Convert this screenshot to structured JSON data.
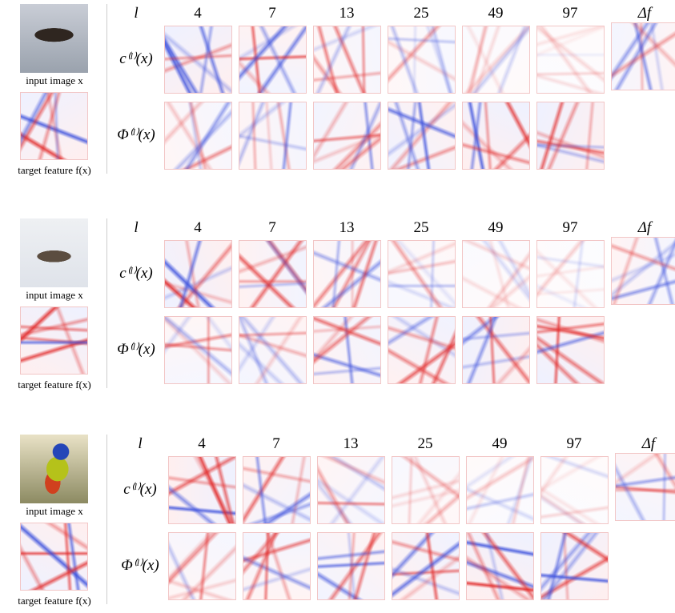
{
  "panels": [
    {
      "input_label": "input image x",
      "target_label": "target feature f(x)",
      "layer_label": "l",
      "columns": [
        4,
        7,
        13,
        25,
        49,
        97
      ],
      "delta_label": "Δf",
      "row_labels": [
        "c⁽ˡ⁾(x)",
        "Φ⁽ˡ⁾(x)"
      ]
    },
    {
      "input_label": "input image x",
      "target_label": "target feature f(x)",
      "layer_label": "l",
      "columns": [
        4,
        7,
        13,
        25,
        49,
        97
      ],
      "delta_label": "Δf",
      "row_labels": [
        "c⁽ˡ⁾(x)",
        "Φ⁽ˡ⁾(x)"
      ]
    },
    {
      "input_label": "input image x",
      "target_label": "target feature f(x)",
      "layer_label": "l",
      "columns": [
        4,
        7,
        13,
        25,
        49,
        97
      ],
      "delta_label": "Δf",
      "row_labels": [
        "c⁽ˡ⁾(x)",
        "Φ⁽ˡ⁾(x)"
      ]
    }
  ]
}
